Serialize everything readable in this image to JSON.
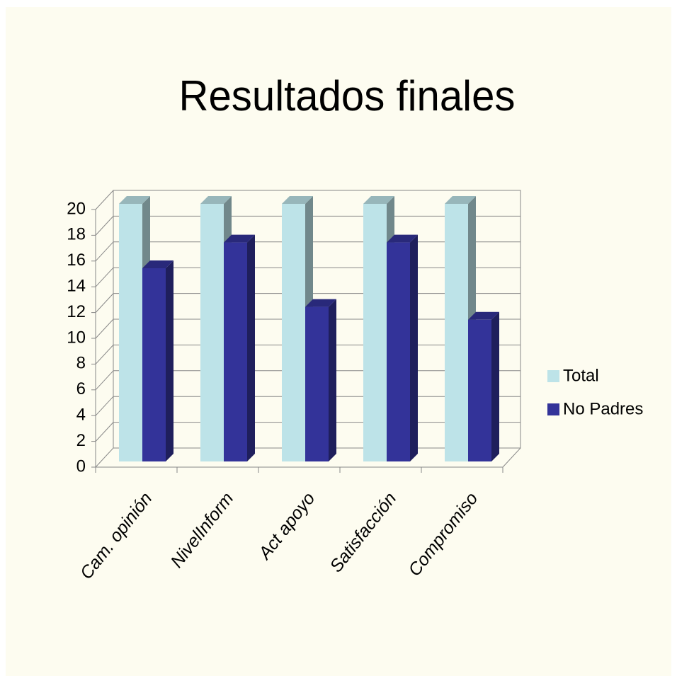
{
  "chart_data": {
    "type": "bar3d",
    "title": "Resultados finales",
    "categories": [
      "Cam. opinión",
      "NivelInform",
      "Act apoyo",
      "Satisfacción",
      "Compromiso"
    ],
    "series": [
      {
        "name": "Total",
        "color": "#bde3e8",
        "values": [
          20,
          20,
          20,
          20,
          20
        ]
      },
      {
        "name": "No Padres",
        "color": "#333399",
        "values": [
          15,
          17,
          12,
          17,
          11
        ]
      }
    ],
    "ylim": [
      0,
      20
    ],
    "yticks": [
      0,
      2,
      4,
      6,
      8,
      10,
      12,
      14,
      16,
      18,
      20
    ],
    "grid": true,
    "legend": "right"
  }
}
